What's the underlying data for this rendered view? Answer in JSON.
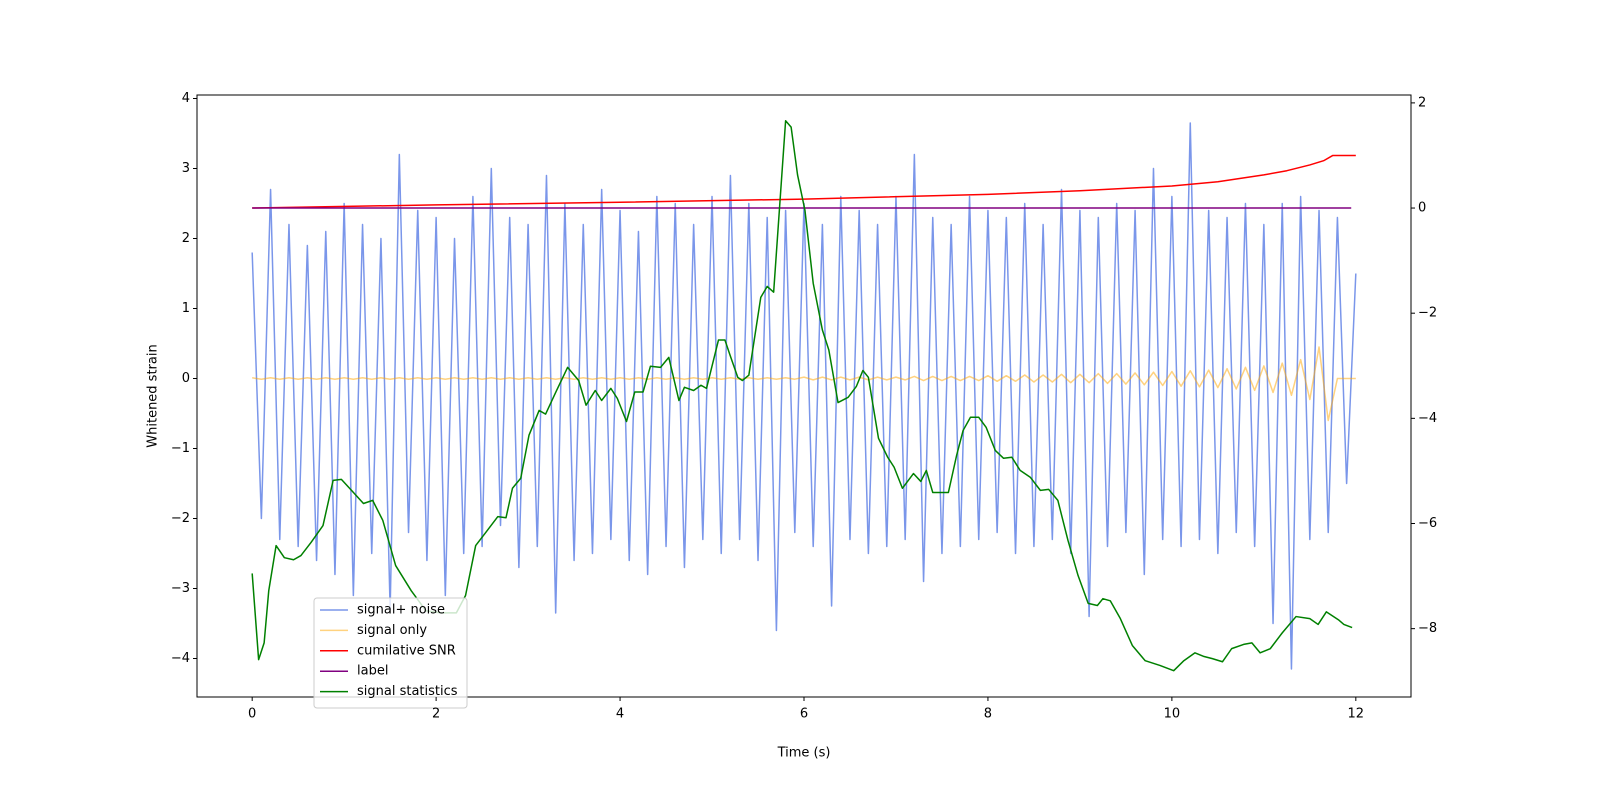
{
  "chart_data": {
    "type": "line",
    "xlabel": "Time (s)",
    "ylabel": "Whitened strain",
    "xlim": [
      -0.6,
      12.6
    ],
    "ylim": [
      -4.55,
      4.05
    ],
    "y2lim": [
      -9.3,
      2.15
    ],
    "xticks": [
      0,
      2,
      4,
      6,
      8,
      10,
      12
    ],
    "yticks": [
      {
        "value": -4,
        "label": "−4"
      },
      {
        "value": -3,
        "label": "−3"
      },
      {
        "value": -2,
        "label": "−2"
      },
      {
        "value": -1,
        "label": "−1"
      },
      0,
      1,
      2,
      3,
      4
    ],
    "y2ticks": [
      {
        "value": -8,
        "label": "−8"
      },
      {
        "value": -6,
        "label": "−6"
      },
      {
        "value": -4,
        "label": "−4"
      },
      {
        "value": -2,
        "label": "−2"
      },
      0,
      2
    ],
    "x": [
      0,
      0.1,
      0.2,
      0.3,
      0.4,
      0.5,
      0.6,
      0.7,
      0.8,
      0.9,
      1,
      1.1,
      1.2,
      1.3,
      1.4,
      1.5,
      1.6,
      1.7,
      1.8,
      1.9,
      2,
      2.1,
      2.2,
      2.3,
      2.4,
      2.5,
      2.6,
      2.7,
      2.8,
      2.9,
      3,
      3.1,
      3.2,
      3.3,
      3.4,
      3.5,
      3.6,
      3.7,
      3.8,
      3.9,
      4,
      4.1,
      4.2,
      4.3,
      4.4,
      4.5,
      4.6,
      4.7,
      4.8,
      4.9,
      5,
      5.1,
      5.2,
      5.3,
      5.4,
      5.5,
      5.6,
      5.7,
      5.8,
      5.9,
      6,
      6.1,
      6.2,
      6.3,
      6.4,
      6.5,
      6.6,
      6.7,
      6.8,
      6.9,
      7,
      7.1,
      7.2,
      7.3,
      7.4,
      7.5,
      7.6,
      7.7,
      7.8,
      7.9,
      8,
      8.1,
      8.2,
      8.3,
      8.4,
      8.5,
      8.6,
      8.7,
      8.8,
      8.9,
      9,
      9.1,
      9.2,
      9.3,
      9.4,
      9.5,
      9.6,
      9.7,
      9.8,
      9.9,
      10,
      10.1,
      10.2,
      10.3,
      10.4,
      10.5,
      10.6,
      10.7,
      10.8,
      10.9,
      11,
      11.1,
      11.2,
      11.3,
      11.4,
      11.5,
      11.6,
      11.7,
      11.8,
      11.9,
      12
    ],
    "series": [
      {
        "name": "signal+ noise",
        "color": "#4169e1",
        "opacity": 0.7,
        "values": [
          1.8,
          -2.0,
          2.7,
          -2.3,
          2.2,
          -2.4,
          1.9,
          -2.6,
          2.1,
          -2.8,
          2.5,
          -3.1,
          2.2,
          -2.5,
          2.0,
          -3.3,
          3.2,
          -2.2,
          2.4,
          -2.6,
          2.3,
          -3.1,
          2.0,
          -2.5,
          2.6,
          -2.4,
          3.0,
          -2.1,
          2.3,
          -2.7,
          2.2,
          -2.4,
          2.9,
          -3.35,
          2.5,
          -2.6,
          2.2,
          -2.5,
          2.7,
          -2.3,
          2.4,
          -2.6,
          2.1,
          -2.8,
          2.6,
          -2.4,
          2.5,
          -2.7,
          2.2,
          -2.3,
          2.6,
          -2.5,
          2.9,
          -2.3,
          2.5,
          -2.6,
          2.3,
          -3.6,
          2.4,
          -2.2,
          2.5,
          -2.4,
          2.2,
          -3.25,
          2.6,
          -2.3,
          2.4,
          -2.5,
          2.2,
          -2.4,
          2.6,
          -2.3,
          3.2,
          -2.9,
          2.3,
          -2.5,
          2.2,
          -2.4,
          2.6,
          -2.3,
          2.4,
          -2.2,
          2.3,
          -2.5,
          2.5,
          -2.4,
          2.2,
          -2.3,
          2.7,
          -2.5,
          2.4,
          -3.4,
          2.3,
          -2.4,
          2.5,
          -2.2,
          2.4,
          -2.8,
          3.0,
          -2.3,
          2.6,
          -2.4,
          3.65,
          -2.3,
          2.4,
          -2.5,
          2.3,
          -2.2,
          2.5,
          -2.4,
          2.2,
          -3.5,
          2.5,
          -4.15,
          2.6,
          -2.3,
          2.4,
          -2.2,
          2.3,
          -1.5,
          1.5
        ]
      },
      {
        "name": "signal only",
        "color": "#ffa500",
        "opacity": 0.5,
        "values": [
          0.01,
          -0.01,
          0.01,
          -0.01,
          0.01,
          -0.01,
          0.01,
          -0.01,
          0.01,
          -0.01,
          0.01,
          -0.01,
          0.01,
          -0.01,
          0.01,
          -0.01,
          0.01,
          -0.01,
          0.01,
          -0.01,
          0.01,
          -0.01,
          0.01,
          -0.01,
          0.01,
          -0.01,
          0.01,
          -0.01,
          0.01,
          -0.01,
          0.01,
          -0.01,
          0.01,
          -0.01,
          0.01,
          -0.01,
          0.01,
          -0.01,
          0.01,
          -0.01,
          0.01,
          -0.01,
          0.01,
          -0.01,
          0.01,
          -0.01,
          0.01,
          -0.01,
          0.01,
          -0.01,
          0.01,
          -0.01,
          0.01,
          -0.01,
          0.01,
          -0.01,
          0.01,
          -0.01,
          0.01,
          -0.01,
          0.02,
          -0.02,
          0.02,
          -0.02,
          0.02,
          -0.02,
          0.02,
          -0.02,
          0.02,
          -0.02,
          0.02,
          -0.02,
          0.03,
          -0.03,
          0.03,
          -0.03,
          0.03,
          -0.03,
          0.03,
          -0.03,
          0.04,
          -0.04,
          0.04,
          -0.04,
          0.05,
          -0.05,
          0.05,
          -0.05,
          0.06,
          -0.06,
          0.06,
          -0.06,
          0.07,
          -0.07,
          0.07,
          -0.08,
          0.08,
          -0.09,
          0.09,
          -0.1,
          0.1,
          -0.11,
          0.11,
          -0.12,
          0.12,
          -0.13,
          0.14,
          -0.15,
          0.16,
          -0.17,
          0.18,
          -0.2,
          0.22,
          -0.24,
          0.27,
          -0.3,
          0.45,
          -0.6,
          0,
          0,
          0
        ]
      },
      {
        "name": "cumilative SNR",
        "color": "#ff0000",
        "axis": "y2",
        "x": [
          0,
          2,
          4,
          6,
          8,
          9,
          10,
          10.5,
          11,
          11.25,
          11.5,
          11.65,
          11.75,
          12
        ],
        "values": [
          0,
          0.06,
          0.11,
          0.17,
          0.26,
          0.33,
          0.42,
          0.5,
          0.63,
          0.71,
          0.82,
          0.9,
          1.0,
          1.0
        ]
      },
      {
        "name": "label",
        "color": "#800080",
        "axis": "y2",
        "x": [
          0,
          11.95
        ],
        "values": [
          0,
          0
        ]
      },
      {
        "name": "signal statistics",
        "color": "#008000",
        "axis": "y2",
        "x": [
          0,
          0.07,
          0.13,
          0.18,
          0.26,
          0.35,
          0.45,
          0.53,
          0.64,
          0.77,
          0.88,
          0.97,
          1.08,
          1.21,
          1.31,
          1.42,
          1.56,
          1.73,
          1.89,
          2.05,
          2.22,
          2.32,
          2.43,
          2.54,
          2.67,
          2.76,
          2.83,
          2.92,
          3.01,
          3.12,
          3.19,
          3.31,
          3.43,
          3.55,
          3.63,
          3.73,
          3.8,
          3.9,
          3.97,
          4.07,
          4.16,
          4.25,
          4.33,
          4.44,
          4.53,
          4.64,
          4.7,
          4.8,
          4.88,
          4.94,
          5.07,
          5.14,
          5.2,
          5.28,
          5.33,
          5.4,
          5.53,
          5.6,
          5.67,
          5.8,
          5.86,
          5.93,
          6.01,
          6.1,
          6.2,
          6.27,
          6.37,
          6.48,
          6.57,
          6.64,
          6.7,
          6.81,
          6.91,
          6.98,
          7.07,
          7.19,
          7.27,
          7.33,
          7.4,
          7.57,
          7.66,
          7.73,
          7.81,
          7.9,
          7.98,
          8.08,
          8.17,
          8.26,
          8.35,
          8.46,
          8.57,
          8.66,
          8.76,
          8.87,
          8.98,
          9.09,
          9.19,
          9.25,
          9.33,
          9.44,
          9.57,
          9.71,
          9.87,
          10.02,
          10.13,
          10.25,
          10.35,
          10.44,
          10.55,
          10.65,
          10.78,
          10.87,
          10.96,
          11.07,
          11.2,
          11.35,
          11.5,
          11.59,
          11.68,
          11.81,
          11.87,
          11.96
        ],
        "values": [
          -6.95,
          -8.59,
          -8.27,
          -7.28,
          -6.42,
          -6.65,
          -6.69,
          -6.61,
          -6.36,
          -6.04,
          -5.18,
          -5.16,
          -5.37,
          -5.62,
          -5.56,
          -5.94,
          -6.8,
          -7.28,
          -7.66,
          -7.7,
          -7.7,
          -7.37,
          -6.42,
          -6.17,
          -5.87,
          -5.89,
          -5.33,
          -5.14,
          -4.32,
          -3.85,
          -3.92,
          -3.47,
          -3.03,
          -3.28,
          -3.75,
          -3.47,
          -3.66,
          -3.43,
          -3.62,
          -4.06,
          -3.5,
          -3.5,
          -3.01,
          -3.03,
          -2.84,
          -3.66,
          -3.41,
          -3.47,
          -3.37,
          -3.43,
          -2.51,
          -2.51,
          -2.82,
          -3.22,
          -3.28,
          -3.18,
          -1.7,
          -1.49,
          -1.6,
          1.66,
          1.54,
          0.63,
          -0.04,
          -1.43,
          -2.32,
          -2.7,
          -3.7,
          -3.6,
          -3.39,
          -3.09,
          -3.22,
          -4.38,
          -4.74,
          -4.93,
          -5.33,
          -5.05,
          -5.2,
          -4.99,
          -5.41,
          -5.41,
          -4.7,
          -4.23,
          -3.98,
          -3.98,
          -4.17,
          -4.61,
          -4.76,
          -4.74,
          -4.99,
          -5.12,
          -5.37,
          -5.35,
          -5.56,
          -6.32,
          -6.99,
          -7.52,
          -7.56,
          -7.43,
          -7.47,
          -7.81,
          -8.32,
          -8.61,
          -8.7,
          -8.8,
          -8.61,
          -8.46,
          -8.53,
          -8.57,
          -8.63,
          -8.38,
          -8.3,
          -8.27,
          -8.46,
          -8.38,
          -8.08,
          -7.77,
          -7.81,
          -7.92,
          -7.68,
          -7.83,
          -7.92,
          -7.98
        ]
      }
    ]
  }
}
